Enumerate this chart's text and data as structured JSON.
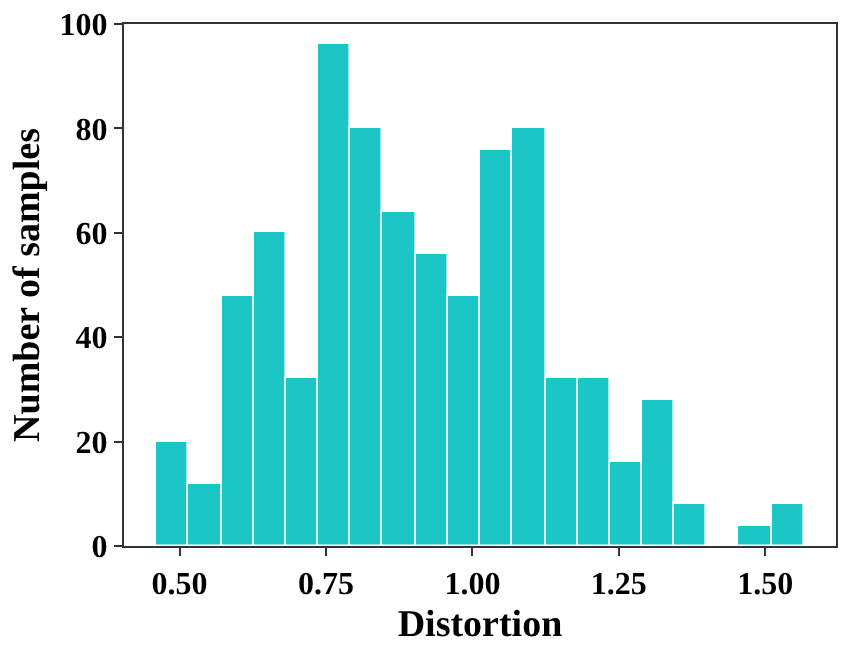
{
  "chart_data": {
    "type": "histogram",
    "xlabel": "Distortion",
    "ylabel": "Number of samples",
    "bins": [
      0.46,
      0.515,
      0.571,
      0.626,
      0.681,
      0.737,
      0.792,
      0.847,
      0.902,
      0.958,
      1.013,
      1.068,
      1.124,
      1.179,
      1.234,
      1.29,
      1.345,
      1.4,
      1.455,
      1.511,
      1.566
    ],
    "values": [
      20,
      12,
      48,
      60,
      32,
      96,
      80,
      64,
      56,
      48,
      76,
      80,
      32,
      32,
      16,
      28,
      8,
      0,
      4,
      8
    ],
    "color": "#1cc6c6",
    "xlim": [
      0.405,
      1.621
    ],
    "xticks": [
      {
        "value": 0.5,
        "label": "0.50"
      },
      0.75,
      {
        "value": 1.0,
        "label": "1.00"
      },
      1.25,
      {
        "value": 1.5,
        "label": "1.50"
      }
    ],
    "ylim": [
      0,
      100
    ],
    "yticks": [
      0,
      20,
      40,
      60,
      80,
      100
    ]
  }
}
